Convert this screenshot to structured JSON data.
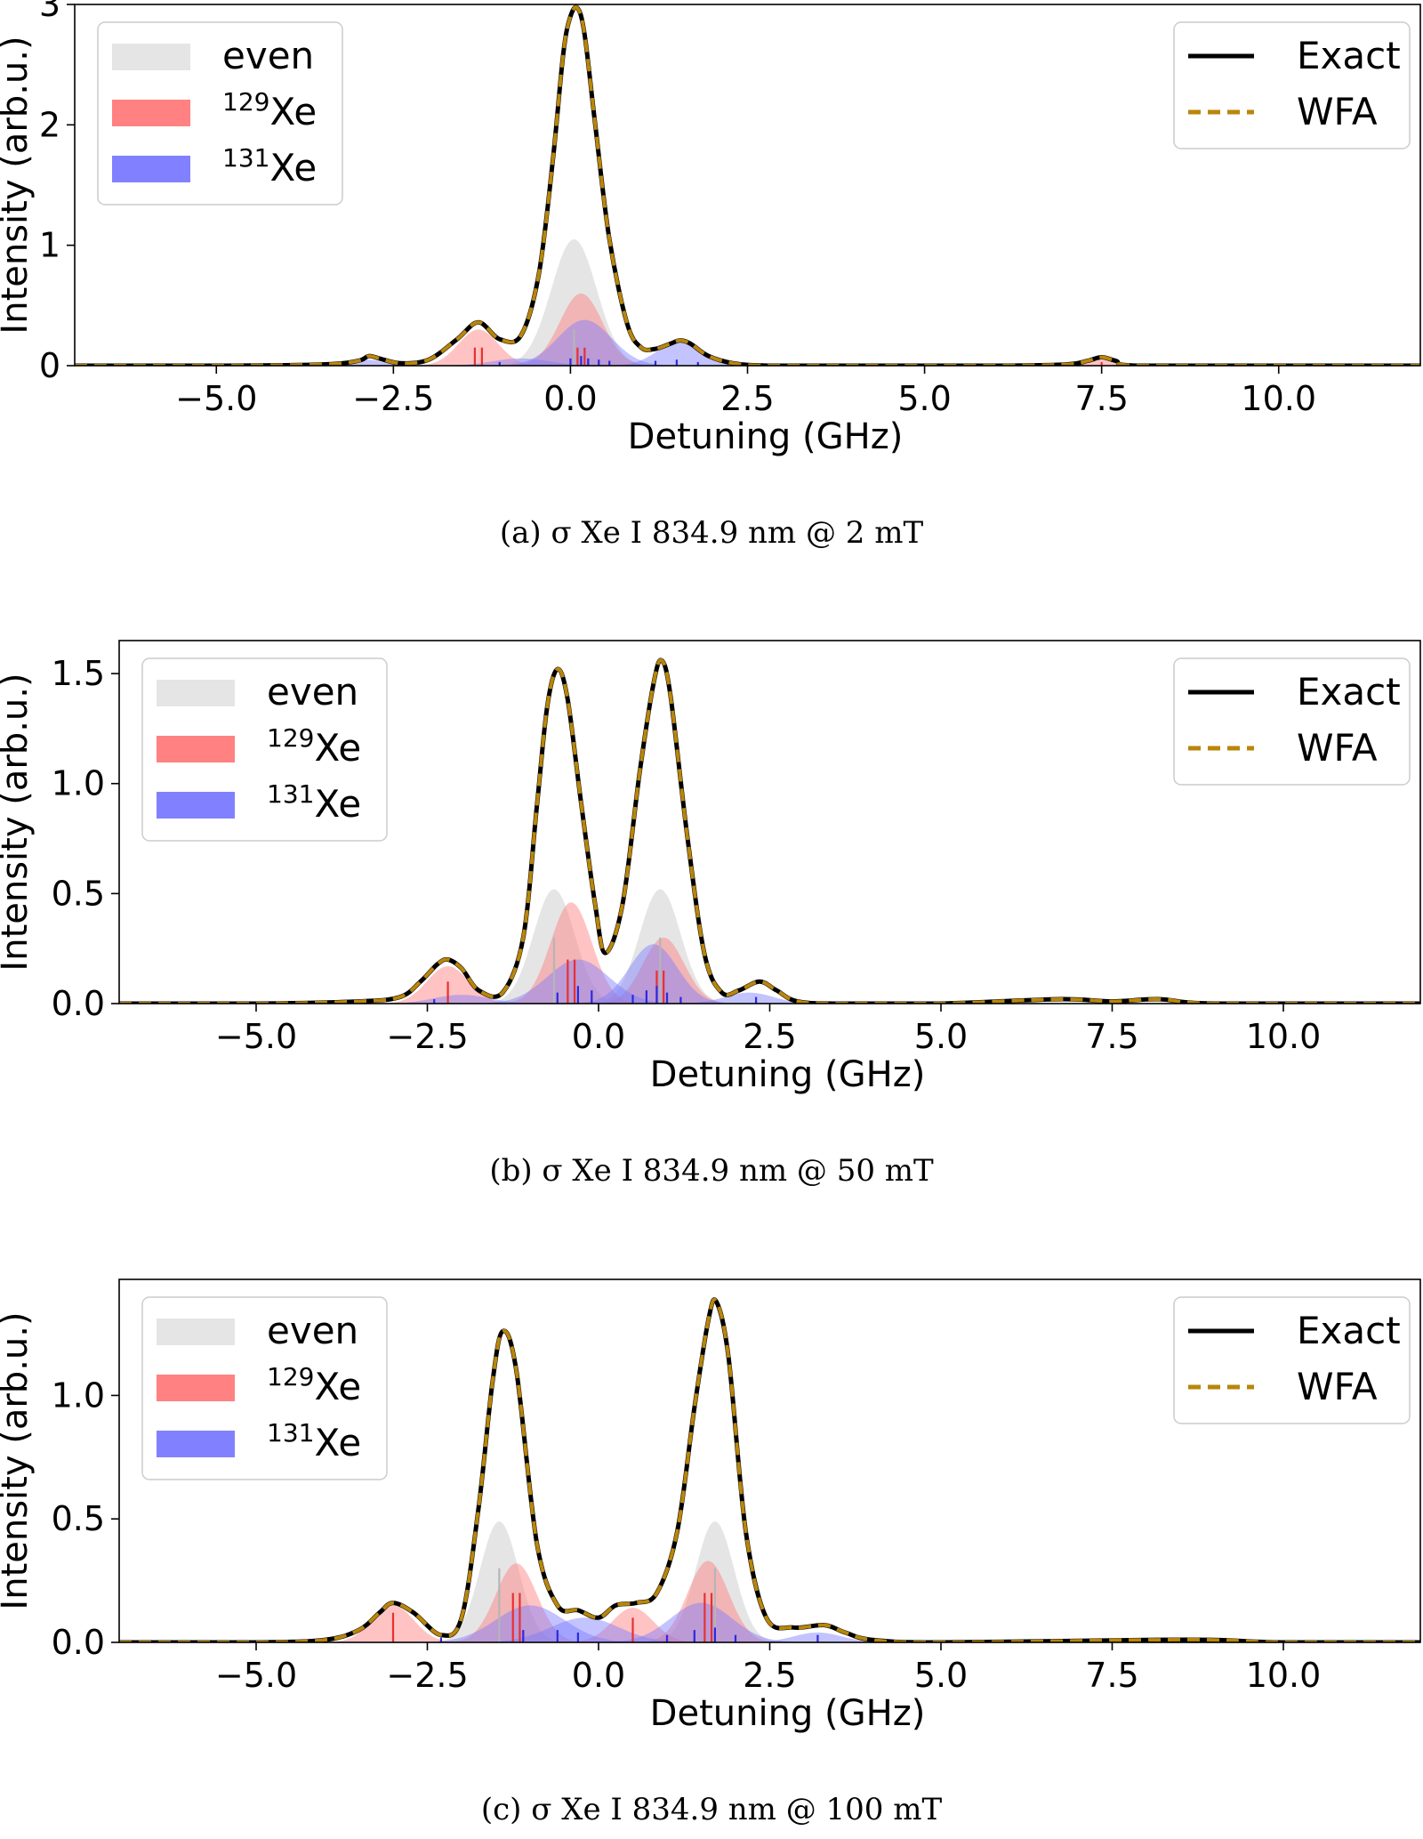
{
  "chart_data": [
    {
      "type": "line",
      "caption": "(a) σ Xe I 834.9 nm @ 2 mT",
      "xlabel": "Detuning (GHz)",
      "ylabel": "Intensity (arb.u.)",
      "xlim": [
        -7.0,
        12.0
      ],
      "ylim": [
        0,
        3.0
      ],
      "xticks": [
        -5.0,
        -2.5,
        0.0,
        2.5,
        5.0,
        7.5,
        10.0
      ],
      "xtick_labels": [
        "−5.0",
        "−2.5",
        "0.0",
        "2.5",
        "5.0",
        "7.5",
        "10.0"
      ],
      "yticks": [
        0,
        1,
        2,
        3
      ],
      "ytick_labels": [
        "0",
        "1",
        "2",
        "3"
      ],
      "legend_isotopes": {
        "placement": "upper left",
        "entries": [
          {
            "label": "even",
            "sup": "",
            "color": "#d3d3d3"
          },
          {
            "label": "Xe",
            "sup": "129",
            "color": "#ff6b6b"
          },
          {
            "label": "Xe",
            "sup": "131",
            "color": "#6b6bff"
          }
        ]
      },
      "legend_methods": {
        "placement": "upper right",
        "entries": [
          {
            "label": "Exact",
            "color": "#000000",
            "style": "solid"
          },
          {
            "label": "WFA",
            "color": "#b8860b",
            "style": "dashed"
          }
        ]
      },
      "components": {
        "even": [
          {
            "c": 0.05,
            "a": 1.05,
            "w": 0.32
          }
        ],
        "xe129": [
          {
            "c": -1.3,
            "a": 0.3,
            "w": 0.28
          },
          {
            "c": 0.15,
            "a": 0.6,
            "w": 0.3
          },
          {
            "c": 7.5,
            "a": 0.05,
            "w": 0.25
          }
        ],
        "xe131": [
          {
            "c": -0.7,
            "a": 0.06,
            "w": 0.4
          },
          {
            "c": 0.2,
            "a": 0.38,
            "w": 0.38
          },
          {
            "c": 1.55,
            "a": 0.2,
            "w": 0.32
          },
          {
            "c": -2.9,
            "a": 0.05,
            "w": 0.25
          }
        ]
      },
      "sticks": {
        "xe129": [
          [
            -1.35,
            0.15
          ],
          [
            -1.25,
            0.15
          ],
          [
            0.1,
            0.15
          ],
          [
            0.2,
            0.15
          ],
          [
            7.5,
            0.03
          ]
        ],
        "xe131": [
          [
            -1.0,
            0.03
          ],
          [
            0.0,
            0.06
          ],
          [
            0.15,
            0.08
          ],
          [
            0.25,
            0.06
          ],
          [
            0.4,
            0.05
          ],
          [
            0.55,
            0.04
          ],
          [
            1.2,
            0.04
          ],
          [
            1.5,
            0.05
          ],
          [
            1.8,
            0.03
          ],
          [
            2.6,
            0.02
          ]
        ],
        "even": [
          [
            0.05,
            0.3
          ]
        ]
      },
      "total": {
        "x": [
          -7.0,
          -5.0,
          -3.5,
          -3.0,
          -2.85,
          -2.7,
          -2.4,
          -2.0,
          -1.6,
          -1.3,
          -1.0,
          -0.7,
          -0.45,
          -0.25,
          -0.1,
          0.0,
          0.1,
          0.2,
          0.35,
          0.55,
          0.8,
          1.0,
          1.2,
          1.4,
          1.55,
          1.7,
          1.95,
          2.3,
          2.8,
          4.0,
          6.0,
          7.0,
          7.3,
          7.5,
          7.7,
          8.0,
          10.0,
          12.0
        ],
        "y": [
          0.0,
          0.0,
          0.01,
          0.04,
          0.08,
          0.06,
          0.02,
          0.05,
          0.22,
          0.36,
          0.22,
          0.25,
          0.75,
          1.7,
          2.6,
          2.9,
          2.97,
          2.75,
          2.0,
          1.05,
          0.35,
          0.15,
          0.14,
          0.18,
          0.21,
          0.18,
          0.08,
          0.02,
          0.0,
          0.0,
          0.0,
          0.01,
          0.04,
          0.07,
          0.04,
          0.0,
          0.0,
          0.0
        ]
      }
    },
    {
      "type": "line",
      "caption": "(b) σ Xe I 834.9 nm @ 50 mT",
      "xlabel": "Detuning (GHz)",
      "ylabel": "Intensity (arb.u.)",
      "xlim": [
        -7.0,
        12.0
      ],
      "ylim": [
        0,
        1.65
      ],
      "xticks": [
        -5.0,
        -2.5,
        0.0,
        2.5,
        5.0,
        7.5,
        10.0
      ],
      "xtick_labels": [
        "−5.0",
        "−2.5",
        "0.0",
        "2.5",
        "5.0",
        "7.5",
        "10.0"
      ],
      "yticks": [
        0,
        0.5,
        1.0,
        1.5
      ],
      "ytick_labels": [
        "0.0",
        "0.5",
        "1.0",
        "1.5"
      ],
      "legend_isotopes": {
        "placement": "upper left",
        "entries": [
          {
            "label": "even",
            "sup": "",
            "color": "#d3d3d3"
          },
          {
            "label": "Xe",
            "sup": "129",
            "color": "#ff6b6b"
          },
          {
            "label": "Xe",
            "sup": "131",
            "color": "#6b6bff"
          }
        ]
      },
      "legend_methods": {
        "placement": "upper right",
        "entries": [
          {
            "label": "Exact",
            "color": "#000000",
            "style": "solid"
          },
          {
            "label": "WFA",
            "color": "#b8860b",
            "style": "dashed"
          }
        ]
      },
      "components": {
        "even": [
          {
            "c": -0.65,
            "a": 0.52,
            "w": 0.3
          },
          {
            "c": 0.9,
            "a": 0.52,
            "w": 0.3
          }
        ],
        "xe129": [
          {
            "c": -2.2,
            "a": 0.17,
            "w": 0.3
          },
          {
            "c": -0.4,
            "a": 0.46,
            "w": 0.3
          },
          {
            "c": 0.95,
            "a": 0.3,
            "w": 0.3
          }
        ],
        "xe131": [
          {
            "c": -0.3,
            "a": 0.2,
            "w": 0.45
          },
          {
            "c": 0.8,
            "a": 0.27,
            "w": 0.35
          },
          {
            "c": 2.2,
            "a": 0.05,
            "w": 0.35
          },
          {
            "c": -2.0,
            "a": 0.04,
            "w": 0.4
          }
        ]
      },
      "sticks": {
        "xe129": [
          [
            -2.2,
            0.1
          ],
          [
            -0.45,
            0.2
          ],
          [
            -0.35,
            0.2
          ],
          [
            0.85,
            0.15
          ],
          [
            0.95,
            0.15
          ]
        ],
        "xe131": [
          [
            -2.4,
            0.02
          ],
          [
            -0.6,
            0.05
          ],
          [
            -0.3,
            0.08
          ],
          [
            -0.1,
            0.06
          ],
          [
            0.5,
            0.04
          ],
          [
            0.7,
            0.06
          ],
          [
            0.85,
            0.08
          ],
          [
            1.0,
            0.05
          ],
          [
            1.2,
            0.03
          ],
          [
            2.3,
            0.03
          ]
        ],
        "even": [
          [
            -0.65,
            0.3
          ],
          [
            0.9,
            0.3
          ]
        ]
      },
      "total": {
        "x": [
          -7.0,
          -5.0,
          -3.5,
          -2.9,
          -2.6,
          -2.35,
          -2.2,
          -2.0,
          -1.75,
          -1.4,
          -1.1,
          -0.9,
          -0.75,
          -0.6,
          -0.45,
          -0.25,
          -0.05,
          0.1,
          0.35,
          0.6,
          0.8,
          0.92,
          1.05,
          1.3,
          1.55,
          1.8,
          2.05,
          2.35,
          2.6,
          2.9,
          3.5,
          5.0,
          6.7,
          7.5,
          8.2,
          9.0,
          12.0
        ],
        "y": [
          0.0,
          0.0,
          0.01,
          0.03,
          0.1,
          0.18,
          0.2,
          0.16,
          0.06,
          0.05,
          0.3,
          0.9,
          1.35,
          1.52,
          1.38,
          0.9,
          0.45,
          0.23,
          0.45,
          1.05,
          1.45,
          1.56,
          1.4,
          0.75,
          0.22,
          0.05,
          0.06,
          0.1,
          0.06,
          0.01,
          0.0,
          0.0,
          0.02,
          0.01,
          0.02,
          0.0,
          0.0
        ]
      }
    },
    {
      "type": "line",
      "caption": "(c) σ Xe I 834.9 nm @ 100 mT",
      "xlabel": "Detuning (GHz)",
      "ylabel": "Intensity (arb.u.)",
      "xlim": [
        -7.0,
        12.0
      ],
      "ylim": [
        0,
        1.47
      ],
      "xticks": [
        -5.0,
        -2.5,
        0.0,
        2.5,
        5.0,
        7.5,
        10.0
      ],
      "xtick_labels": [
        "−5.0",
        "−2.5",
        "0.0",
        "2.5",
        "5.0",
        "7.5",
        "10.0"
      ],
      "yticks": [
        0,
        0.5,
        1.0
      ],
      "ytick_labels": [
        "0.0",
        "0.5",
        "1.0"
      ],
      "legend_isotopes": {
        "placement": "upper left",
        "entries": [
          {
            "label": "even",
            "sup": "",
            "color": "#d3d3d3"
          },
          {
            "label": "Xe",
            "sup": "129",
            "color": "#ff6b6b"
          },
          {
            "label": "Xe",
            "sup": "131",
            "color": "#6b6bff"
          }
        ]
      },
      "legend_methods": {
        "placement": "upper right",
        "entries": [
          {
            "label": "Exact",
            "color": "#000000",
            "style": "solid"
          },
          {
            "label": "WFA",
            "color": "#b8860b",
            "style": "dashed"
          }
        ]
      },
      "components": {
        "even": [
          {
            "c": -1.45,
            "a": 0.49,
            "w": 0.28
          },
          {
            "c": 1.7,
            "a": 0.49,
            "w": 0.28
          }
        ],
        "xe129": [
          {
            "c": -3.0,
            "a": 0.15,
            "w": 0.3
          },
          {
            "c": -1.2,
            "a": 0.32,
            "w": 0.3
          },
          {
            "c": 0.5,
            "a": 0.14,
            "w": 0.3
          },
          {
            "c": 1.6,
            "a": 0.33,
            "w": 0.3
          }
        ],
        "xe131": [
          {
            "c": -1.0,
            "a": 0.15,
            "w": 0.5
          },
          {
            "c": -0.2,
            "a": 0.1,
            "w": 0.5
          },
          {
            "c": 1.5,
            "a": 0.16,
            "w": 0.45
          },
          {
            "c": 3.2,
            "a": 0.04,
            "w": 0.35
          }
        ]
      },
      "sticks": {
        "xe129": [
          [
            -3.0,
            0.12
          ],
          [
            -1.25,
            0.2
          ],
          [
            -1.15,
            0.2
          ],
          [
            0.5,
            0.1
          ],
          [
            1.55,
            0.2
          ],
          [
            1.65,
            0.2
          ]
        ],
        "xe131": [
          [
            -2.3,
            0.02
          ],
          [
            -1.1,
            0.05
          ],
          [
            -0.6,
            0.05
          ],
          [
            -0.3,
            0.04
          ],
          [
            1.0,
            0.03
          ],
          [
            1.4,
            0.05
          ],
          [
            1.7,
            0.06
          ],
          [
            2.0,
            0.03
          ],
          [
            3.2,
            0.03
          ]
        ],
        "even": [
          [
            -1.45,
            0.3
          ],
          [
            1.7,
            0.3
          ]
        ]
      },
      "total": {
        "x": [
          -7.0,
          -5.0,
          -4.0,
          -3.5,
          -3.2,
          -3.0,
          -2.7,
          -2.3,
          -2.0,
          -1.75,
          -1.55,
          -1.4,
          -1.2,
          -0.9,
          -0.6,
          -0.3,
          0.0,
          0.25,
          0.55,
          0.85,
          1.15,
          1.4,
          1.6,
          1.72,
          1.9,
          2.15,
          2.45,
          2.85,
          3.3,
          3.6,
          4.0,
          5.0,
          8.0,
          9.0,
          10.0,
          12.0
        ],
        "y": [
          0.0,
          0.0,
          0.01,
          0.05,
          0.12,
          0.16,
          0.12,
          0.03,
          0.1,
          0.55,
          1.05,
          1.26,
          1.1,
          0.4,
          0.15,
          0.13,
          0.1,
          0.15,
          0.16,
          0.2,
          0.45,
          0.95,
          1.3,
          1.38,
          1.15,
          0.45,
          0.1,
          0.06,
          0.07,
          0.04,
          0.01,
          0.0,
          0.01,
          0.01,
          0.0,
          0.0
        ]
      }
    }
  ]
}
